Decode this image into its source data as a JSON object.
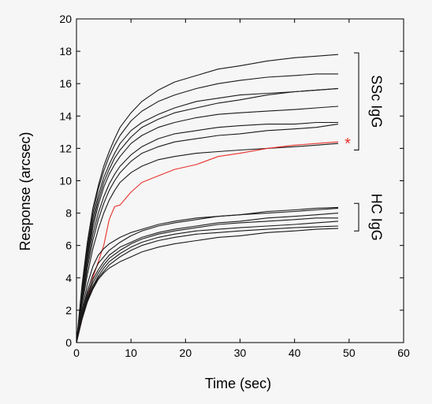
{
  "chart_data": {
    "type": "line",
    "xlabel": "Time (sec)",
    "ylabel": "Response (arcsec)",
    "xlim": [
      0,
      60
    ],
    "ylim": [
      0,
      20
    ],
    "x_ticks": [
      "0",
      "10",
      "20",
      "30",
      "40",
      "50",
      "60"
    ],
    "y_ticks": [
      "0",
      "2",
      "4",
      "6",
      "8",
      "10",
      "12",
      "14",
      "16",
      "18",
      "20"
    ],
    "grid": false,
    "annotations": {
      "group1_label": "SSc IgG",
      "group2_label": "HC IgG",
      "marker": "*",
      "marker_series_index": 8
    },
    "colors": {
      "line": "#1a1a1a",
      "highlight": "#e8312a",
      "axis": "#000000",
      "background": "#f6f6f6"
    },
    "series": [
      {
        "group": 1,
        "points": [
          [
            0,
            0
          ],
          [
            1,
            3.5
          ],
          [
            2,
            6.2
          ],
          [
            3,
            8.3
          ],
          [
            4,
            9.7
          ],
          [
            5,
            10.9
          ],
          [
            6,
            11.8
          ],
          [
            7,
            12.6
          ],
          [
            8,
            13.3
          ],
          [
            10,
            14.2
          ],
          [
            12,
            14.9
          ],
          [
            15,
            15.6
          ],
          [
            18,
            16.1
          ],
          [
            22,
            16.5
          ],
          [
            26,
            16.9
          ],
          [
            30,
            17.1
          ],
          [
            35,
            17.4
          ],
          [
            40,
            17.6
          ],
          [
            44,
            17.7
          ],
          [
            48,
            17.8
          ]
        ]
      },
      {
        "group": 1,
        "points": [
          [
            0,
            0
          ],
          [
            1,
            3.3
          ],
          [
            2,
            5.9
          ],
          [
            3,
            8.0
          ],
          [
            4,
            9.5
          ],
          [
            5,
            10.6
          ],
          [
            6,
            11.5
          ],
          [
            7,
            12.2
          ],
          [
            8,
            12.8
          ],
          [
            10,
            13.7
          ],
          [
            12,
            14.3
          ],
          [
            15,
            14.9
          ],
          [
            18,
            15.3
          ],
          [
            22,
            15.7
          ],
          [
            26,
            16.0
          ],
          [
            30,
            16.2
          ],
          [
            35,
            16.4
          ],
          [
            40,
            16.5
          ],
          [
            44,
            16.6
          ],
          [
            48,
            16.6
          ]
        ]
      },
      {
        "group": 1,
        "points": [
          [
            0,
            0
          ],
          [
            1,
            3.1
          ],
          [
            2,
            5.6
          ],
          [
            3,
            7.7
          ],
          [
            4,
            9.1
          ],
          [
            5,
            10.2
          ],
          [
            6,
            11.0
          ],
          [
            7,
            11.7
          ],
          [
            8,
            12.3
          ],
          [
            10,
            13.1
          ],
          [
            12,
            13.6
          ],
          [
            15,
            14.1
          ],
          [
            18,
            14.5
          ],
          [
            22,
            14.9
          ],
          [
            26,
            15.1
          ],
          [
            30,
            15.3
          ],
          [
            35,
            15.4
          ],
          [
            40,
            15.5
          ],
          [
            44,
            15.6
          ],
          [
            48,
            15.7
          ]
        ]
      },
      {
        "group": 1,
        "points": [
          [
            0,
            0
          ],
          [
            1,
            3.0
          ],
          [
            2,
            5.4
          ],
          [
            3,
            7.4
          ],
          [
            4,
            8.8
          ],
          [
            5,
            9.9
          ],
          [
            6,
            10.7
          ],
          [
            7,
            11.4
          ],
          [
            8,
            11.9
          ],
          [
            10,
            12.7
          ],
          [
            12,
            13.3
          ],
          [
            15,
            13.8
          ],
          [
            18,
            14.2
          ],
          [
            22,
            14.5
          ],
          [
            26,
            14.8
          ],
          [
            30,
            15.0
          ],
          [
            35,
            15.3
          ],
          [
            40,
            15.5
          ],
          [
            44,
            15.6
          ],
          [
            48,
            15.7
          ]
        ]
      },
      {
        "group": 1,
        "points": [
          [
            0,
            0
          ],
          [
            1,
            2.9
          ],
          [
            2,
            5.2
          ],
          [
            3,
            7.1
          ],
          [
            4,
            8.5
          ],
          [
            5,
            9.6
          ],
          [
            6,
            10.4
          ],
          [
            7,
            11.0
          ],
          [
            8,
            11.5
          ],
          [
            10,
            12.3
          ],
          [
            12,
            12.8
          ],
          [
            15,
            13.3
          ],
          [
            18,
            13.6
          ],
          [
            22,
            13.9
          ],
          [
            26,
            14.1
          ],
          [
            30,
            14.2
          ],
          [
            35,
            14.3
          ],
          [
            40,
            14.4
          ],
          [
            44,
            14.5
          ],
          [
            48,
            14.6
          ]
        ]
      },
      {
        "group": 1,
        "points": [
          [
            0,
            0
          ],
          [
            1,
            2.7
          ],
          [
            2,
            4.9
          ],
          [
            3,
            6.7
          ],
          [
            4,
            8.0
          ],
          [
            5,
            9.0
          ],
          [
            6,
            9.8
          ],
          [
            7,
            10.4
          ],
          [
            8,
            10.9
          ],
          [
            10,
            11.6
          ],
          [
            12,
            12.1
          ],
          [
            15,
            12.6
          ],
          [
            18,
            12.9
          ],
          [
            22,
            13.1
          ],
          [
            26,
            13.3
          ],
          [
            30,
            13.4
          ],
          [
            35,
            13.5
          ],
          [
            40,
            13.5
          ],
          [
            44,
            13.6
          ],
          [
            48,
            13.6
          ]
        ]
      },
      {
        "group": 1,
        "points": [
          [
            0,
            0
          ],
          [
            1,
            2.5
          ],
          [
            2,
            4.6
          ],
          [
            3,
            6.3
          ],
          [
            4,
            7.6
          ],
          [
            5,
            8.6
          ],
          [
            6,
            9.4
          ],
          [
            7,
            10.0
          ],
          [
            8,
            10.5
          ],
          [
            10,
            11.2
          ],
          [
            12,
            11.7
          ],
          [
            15,
            12.1
          ],
          [
            18,
            12.4
          ],
          [
            22,
            12.6
          ],
          [
            26,
            12.8
          ],
          [
            30,
            12.9
          ],
          [
            35,
            13.1
          ],
          [
            40,
            13.2
          ],
          [
            44,
            13.3
          ],
          [
            48,
            13.5
          ]
        ]
      },
      {
        "group": 1,
        "points": [
          [
            0,
            0
          ],
          [
            1,
            2.3
          ],
          [
            2,
            4.2
          ],
          [
            3,
            5.8
          ],
          [
            4,
            7.0
          ],
          [
            5,
            8.0
          ],
          [
            6,
            8.8
          ],
          [
            7,
            9.4
          ],
          [
            8,
            9.9
          ],
          [
            10,
            10.5
          ],
          [
            12,
            10.9
          ],
          [
            15,
            11.3
          ],
          [
            18,
            11.5
          ],
          [
            22,
            11.7
          ],
          [
            26,
            11.8
          ],
          [
            30,
            11.9
          ],
          [
            35,
            12.0
          ],
          [
            40,
            12.1
          ],
          [
            44,
            12.2
          ],
          [
            48,
            12.3
          ]
        ]
      },
      {
        "group": 1,
        "points": [
          [
            0,
            0
          ],
          [
            1,
            1.4
          ],
          [
            2,
            2.8
          ],
          [
            3,
            4.0
          ],
          [
            4,
            5.0
          ],
          [
            5,
            6.0
          ],
          [
            6,
            7.6
          ],
          [
            7,
            8.4
          ],
          [
            8,
            8.5
          ],
          [
            10,
            9.3
          ],
          [
            12,
            9.9
          ],
          [
            15,
            10.3
          ],
          [
            18,
            10.7
          ],
          [
            22,
            11.0
          ],
          [
            26,
            11.5
          ],
          [
            30,
            11.7
          ],
          [
            35,
            12.0
          ],
          [
            40,
            12.2
          ],
          [
            44,
            12.3
          ],
          [
            48,
            12.4
          ]
        ]
      },
      {
        "group": 2,
        "points": [
          [
            0,
            0
          ],
          [
            1,
            2.0
          ],
          [
            2,
            3.6
          ],
          [
            3,
            4.7
          ],
          [
            4,
            5.4
          ],
          [
            5,
            5.8
          ],
          [
            6,
            6.1
          ],
          [
            8,
            6.5
          ],
          [
            10,
            6.8
          ],
          [
            12,
            7.0
          ],
          [
            15,
            7.3
          ],
          [
            18,
            7.5
          ],
          [
            22,
            7.7
          ],
          [
            26,
            7.8
          ],
          [
            30,
            7.9
          ],
          [
            35,
            8.1
          ],
          [
            40,
            8.2
          ],
          [
            44,
            8.3
          ],
          [
            48,
            8.35
          ]
        ]
      },
      {
        "group": 2,
        "points": [
          [
            0,
            0
          ],
          [
            1,
            1.8
          ],
          [
            2,
            3.2
          ],
          [
            3,
            4.2
          ],
          [
            4,
            4.9
          ],
          [
            5,
            5.3
          ],
          [
            6,
            5.7
          ],
          [
            8,
            6.2
          ],
          [
            10,
            6.6
          ],
          [
            12,
            6.9
          ],
          [
            15,
            7.2
          ],
          [
            18,
            7.4
          ],
          [
            22,
            7.6
          ],
          [
            26,
            7.8
          ],
          [
            30,
            7.9
          ],
          [
            35,
            8.0
          ],
          [
            40,
            8.1
          ],
          [
            44,
            8.2
          ],
          [
            48,
            8.3
          ]
        ]
      },
      {
        "group": 2,
        "points": [
          [
            0,
            0
          ],
          [
            1,
            1.7
          ],
          [
            2,
            3.0
          ],
          [
            3,
            3.9
          ],
          [
            4,
            4.5
          ],
          [
            5,
            5.0
          ],
          [
            6,
            5.4
          ],
          [
            8,
            5.9
          ],
          [
            10,
            6.2
          ],
          [
            12,
            6.5
          ],
          [
            15,
            6.8
          ],
          [
            18,
            7.0
          ],
          [
            22,
            7.2
          ],
          [
            26,
            7.4
          ],
          [
            30,
            7.5
          ],
          [
            35,
            7.7
          ],
          [
            40,
            7.8
          ],
          [
            44,
            7.9
          ],
          [
            48,
            8.0
          ]
        ]
      },
      {
        "group": 2,
        "points": [
          [
            0,
            0
          ],
          [
            1,
            1.6
          ],
          [
            2,
            2.8
          ],
          [
            3,
            3.7
          ],
          [
            4,
            4.3
          ],
          [
            5,
            4.8
          ],
          [
            6,
            5.2
          ],
          [
            8,
            5.7
          ],
          [
            10,
            6.1
          ],
          [
            12,
            6.4
          ],
          [
            15,
            6.7
          ],
          [
            18,
            6.9
          ],
          [
            22,
            7.1
          ],
          [
            26,
            7.3
          ],
          [
            30,
            7.4
          ],
          [
            35,
            7.5
          ],
          [
            40,
            7.6
          ],
          [
            44,
            7.7
          ],
          [
            48,
            7.7
          ]
        ]
      },
      {
        "group": 2,
        "points": [
          [
            0,
            0
          ],
          [
            1,
            1.5
          ],
          [
            2,
            2.7
          ],
          [
            3,
            3.5
          ],
          [
            4,
            4.1
          ],
          [
            5,
            4.6
          ],
          [
            6,
            5.0
          ],
          [
            8,
            5.5
          ],
          [
            10,
            5.9
          ],
          [
            12,
            6.2
          ],
          [
            15,
            6.5
          ],
          [
            18,
            6.7
          ],
          [
            22,
            6.9
          ],
          [
            26,
            7.0
          ],
          [
            30,
            7.1
          ],
          [
            35,
            7.2
          ],
          [
            40,
            7.3
          ],
          [
            44,
            7.4
          ],
          [
            48,
            7.5
          ]
        ]
      },
      {
        "group": 2,
        "points": [
          [
            0,
            0
          ],
          [
            1,
            1.5
          ],
          [
            2,
            2.6
          ],
          [
            3,
            3.4
          ],
          [
            4,
            4.0
          ],
          [
            5,
            4.4
          ],
          [
            6,
            4.8
          ],
          [
            8,
            5.3
          ],
          [
            10,
            5.7
          ],
          [
            12,
            6.0
          ],
          [
            15,
            6.3
          ],
          [
            18,
            6.5
          ],
          [
            22,
            6.7
          ],
          [
            26,
            6.8
          ],
          [
            30,
            6.9
          ],
          [
            35,
            7.0
          ],
          [
            40,
            7.1
          ],
          [
            44,
            7.15
          ],
          [
            48,
            7.2
          ]
        ]
      },
      {
        "group": 2,
        "points": [
          [
            0,
            0
          ],
          [
            1,
            1.4
          ],
          [
            2,
            2.5
          ],
          [
            3,
            3.3
          ],
          [
            4,
            3.9
          ],
          [
            5,
            4.3
          ],
          [
            6,
            4.6
          ],
          [
            8,
            5.0
          ],
          [
            10,
            5.3
          ],
          [
            12,
            5.6
          ],
          [
            15,
            5.9
          ],
          [
            18,
            6.1
          ],
          [
            22,
            6.3
          ],
          [
            26,
            6.5
          ],
          [
            30,
            6.6
          ],
          [
            35,
            6.8
          ],
          [
            40,
            6.9
          ],
          [
            44,
            7.0
          ],
          [
            48,
            7.05
          ]
        ]
      }
    ]
  }
}
